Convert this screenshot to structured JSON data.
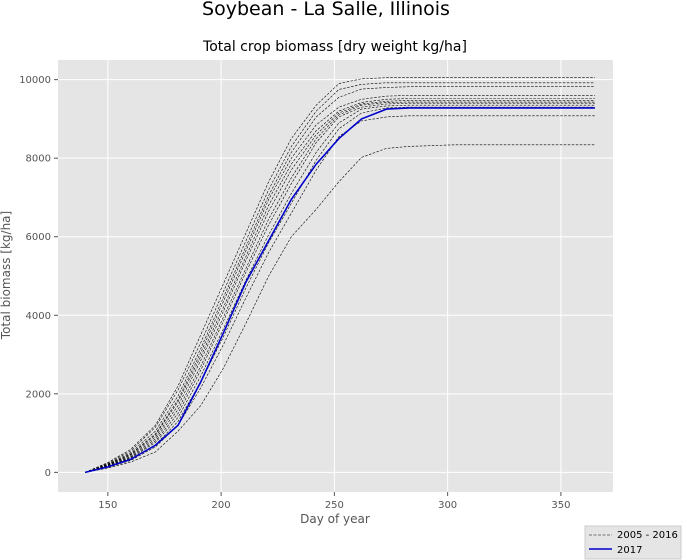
{
  "chart_data": {
    "type": "line",
    "suptitle": "Soybean - La Salle, Illinois",
    "title": "Total crop biomass [dry weight kg/ha]",
    "xlabel": "Day of year",
    "ylabel": "Total biomass [kg/ha]",
    "xlim": [
      128,
      373
    ],
    "ylim": [
      -500,
      10500
    ],
    "xticks": [
      150,
      200,
      250,
      300,
      350
    ],
    "yticks": [
      0,
      2000,
      4000,
      6000,
      8000,
      10000
    ],
    "grid": true,
    "legend_position": "bottom-right",
    "colors": {
      "background": "#e5e5e5",
      "grid": "#ffffff",
      "historical": "#000000",
      "current": "#0000cc"
    },
    "x": [
      140,
      150,
      160,
      171,
      181,
      191,
      201,
      211,
      221,
      231,
      242,
      252,
      262,
      273,
      283,
      293,
      303,
      313,
      323,
      334,
      344,
      354,
      365
    ],
    "series": [
      {
        "name": "2005 - 2016",
        "style": "dashed",
        "values": [
          0,
          250,
          580,
          1200,
          2200,
          3500,
          4800,
          6100,
          7400,
          8500,
          9350,
          9900,
          10020,
          10050,
          10050,
          10050,
          10050,
          10050,
          10050,
          10050,
          10050,
          10050,
          10050
        ]
      },
      {
        "style": "dashed",
        "values": [
          0,
          230,
          540,
          1150,
          2100,
          3300,
          4600,
          5900,
          7200,
          8300,
          9200,
          9750,
          9880,
          9920,
          9920,
          9920,
          9920,
          9920,
          9920,
          9920,
          9920,
          9920,
          9920
        ]
      },
      {
        "style": "dashed",
        "values": [
          0,
          210,
          500,
          1050,
          1950,
          3150,
          4450,
          5750,
          7050,
          8150,
          9050,
          9550,
          9760,
          9800,
          9820,
          9820,
          9820,
          9820,
          9820,
          9820,
          9820,
          9820,
          9820
        ]
      },
      {
        "style": "dashed",
        "values": [
          0,
          200,
          470,
          980,
          1850,
          3050,
          4350,
          5650,
          6950,
          8000,
          8850,
          9300,
          9500,
          9580,
          9600,
          9600,
          9600,
          9600,
          9600,
          9600,
          9600,
          9600,
          9600
        ]
      },
      {
        "style": "dashed",
        "values": [
          0,
          190,
          450,
          950,
          1800,
          2950,
          4200,
          5500,
          6800,
          7850,
          8700,
          9200,
          9420,
          9500,
          9520,
          9520,
          9520,
          9520,
          9520,
          9520,
          9520,
          9520,
          9520
        ]
      },
      {
        "style": "dashed",
        "values": [
          0,
          180,
          430,
          900,
          1700,
          2850,
          4100,
          5400,
          6650,
          7700,
          8600,
          9150,
          9380,
          9450,
          9470,
          9470,
          9470,
          9470,
          9470,
          9470,
          9470,
          9470,
          9470
        ]
      },
      {
        "style": "dashed",
        "values": [
          0,
          170,
          400,
          850,
          1600,
          2700,
          3950,
          5200,
          6450,
          7500,
          8500,
          9100,
          9350,
          9420,
          9430,
          9430,
          9430,
          9430,
          9430,
          9430,
          9430,
          9430,
          9430
        ]
      },
      {
        "style": "dashed",
        "values": [
          0,
          160,
          380,
          800,
          1500,
          2600,
          3850,
          5100,
          6300,
          7350,
          8400,
          9050,
          9300,
          9380,
          9400,
          9400,
          9400,
          9400,
          9400,
          9400,
          9400,
          9400,
          9400
        ]
      },
      {
        "style": "dashed",
        "values": [
          0,
          150,
          360,
          760,
          1400,
          2450,
          3650,
          4900,
          6050,
          7100,
          8150,
          8900,
          9250,
          9330,
          9350,
          9350,
          9350,
          9350,
          9350,
          9350,
          9350,
          9350,
          9350
        ]
      },
      {
        "style": "dashed",
        "values": [
          0,
          140,
          330,
          700,
          1300,
          2300,
          3450,
          4700,
          5850,
          6850,
          7950,
          8750,
          9150,
          9280,
          9300,
          9300,
          9300,
          9300,
          9300,
          9300,
          9300,
          9300,
          9300
        ]
      },
      {
        "style": "dashed",
        "values": [
          0,
          130,
          300,
          650,
          1200,
          2150,
          3250,
          4450,
          5600,
          6600,
          7700,
          8550,
          8950,
          9050,
          9080,
          9080,
          9080,
          9080,
          9080,
          9080,
          9080,
          9080,
          9080
        ]
      },
      {
        "style": "dashed",
        "values": [
          0,
          110,
          260,
          520,
          1050,
          1700,
          2650,
          3800,
          5000,
          6000,
          6700,
          7400,
          8020,
          8250,
          8300,
          8320,
          8340,
          8340,
          8340,
          8340,
          8340,
          8340,
          8340
        ]
      },
      {
        "name": "2017",
        "style": "solid",
        "values": [
          0,
          140,
          330,
          690,
          1200,
          2300,
          3550,
          4850,
          5900,
          6950,
          7850,
          8500,
          9000,
          9250,
          9280,
          9280,
          9280,
          9280,
          9280,
          9280,
          9280,
          9280,
          9280
        ]
      }
    ]
  }
}
